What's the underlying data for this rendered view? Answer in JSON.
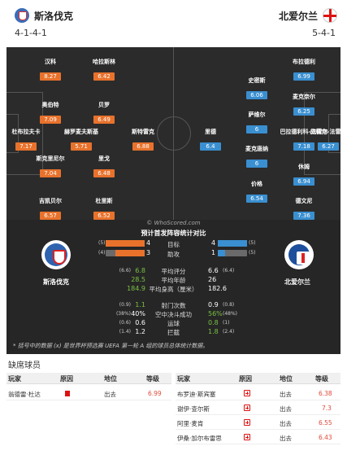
{
  "header": {
    "home_team": "斯洛伐克",
    "home_formation": "4-1-4-1",
    "away_team": "北爱尔兰",
    "away_formation": "5-4-1"
  },
  "pitch": {
    "home_players": [
      {
        "name": "汉科",
        "rating": "8.27"
      },
      {
        "name": "哈拉斯林",
        "rating": "6.42"
      },
      {
        "name": "奥伯特",
        "rating": "7.09"
      },
      {
        "name": "贝罗",
        "rating": "6.49"
      },
      {
        "name": "杜布拉夫卡",
        "rating": "7.17"
      },
      {
        "name": "赫罗麦夫斯基",
        "rating": "5.71"
      },
      {
        "name": "斯特雷克",
        "rating": "6.88"
      },
      {
        "name": "斯克里尼尔",
        "rating": "7.04"
      },
      {
        "name": "里戈",
        "rating": "6.48"
      },
      {
        "name": "吉凯贝尔",
        "rating": "6.57"
      },
      {
        "name": "杜里斯",
        "rating": "6.52"
      }
    ],
    "away_players": [
      {
        "name": "布拉德利",
        "rating": "6.99"
      },
      {
        "name": "史密斯",
        "rating": "6.06"
      },
      {
        "name": "麦克奈尔",
        "rating": "6.25"
      },
      {
        "name": "萨维尔",
        "rating": "6"
      },
      {
        "name": "里德",
        "rating": "6.4"
      },
      {
        "name": "巴拉德利科-法雷尔",
        "rating": "7.18"
      },
      {
        "name": "皮科克-法雷尔",
        "rating": "6.27"
      },
      {
        "name": "麦克唐纳",
        "rating": "6"
      },
      {
        "name": "休姆",
        "rating": "6.94"
      },
      {
        "name": "价格",
        "rating": "6.54"
      },
      {
        "name": "德文尼",
        "rating": "7.36"
      }
    ]
  },
  "stats": {
    "watermark": "© WhoScored.com",
    "title": "预计首发阵容统计对比",
    "home_name": "斯洛伐克",
    "away_name": "北爱尔兰",
    "bars": [
      {
        "label": "目标",
        "home": "4",
        "home_rank": "(5)",
        "away": "4",
        "away_rank": "(5)",
        "home_frac": 1.0,
        "away_frac": 1.0
      },
      {
        "label": "助攻",
        "home": "3",
        "home_rank": "(4)",
        "away": "1",
        "away_rank": "(5)",
        "home_frac": 0.75,
        "away_frac": 0.25
      }
    ],
    "rows_a": [
      {
        "label": "平均评分",
        "home": "6.8",
        "home_rank": "(6.6)",
        "away": "6.6",
        "away_rank": "(6.4)"
      },
      {
        "label": "平均年龄",
        "home": "28.5",
        "home_rank": "",
        "away": "26",
        "away_rank": ""
      },
      {
        "label": "平均身高（厘米）",
        "home": "184.9",
        "home_rank": "",
        "away": "182.6",
        "away_rank": ""
      }
    ],
    "rows_b": [
      {
        "label": "射门次数",
        "home": "1.1",
        "home_rank": "(0.9)",
        "away": "0.9",
        "away_rank": "(0.8)"
      },
      {
        "label": "空中决斗成功",
        "home": "40%",
        "home_rank": "(38%)",
        "away": "56%",
        "away_rank": "(48%)"
      },
      {
        "label": "运球",
        "home": "0.6",
        "home_rank": "(0.6)",
        "away": "0.8",
        "away_rank": "(1)"
      },
      {
        "label": "拦截",
        "home": "1.2",
        "home_rank": "(1.4)",
        "away": "1.8",
        "away_rank": "(2.4)"
      }
    ],
    "footnote": "* 括号中的数据 (x) 是世界杯预选赛 UEFA 第一轮 A 组的球员总体统计数据。"
  },
  "absent": {
    "title": "缺席球员",
    "columns": [
      "玩家",
      "原因",
      "地位",
      "等级"
    ],
    "home_rows": [
      {
        "player": "翁德雷·杜达",
        "status": "出去",
        "rating": "6.99"
      }
    ],
    "away_rows": [
      {
        "player": "布罗迪·斯宾塞",
        "status": "出去",
        "rating": "6.38"
      },
      {
        "player": "谢伊·查尔斯",
        "status": "出去",
        "rating": "7.3"
      },
      {
        "player": "阿里·麦肯",
        "status": "出去",
        "rating": "6.55"
      },
      {
        "player": "伊桑·加尔布雷思",
        "status": "出去",
        "rating": "6.43"
      }
    ]
  },
  "colors": {
    "home_accent": "#e8722c",
    "away_accent": "#3a8fd0",
    "pitch_bg": "#2b2b2b",
    "positive": "#7ac143"
  }
}
